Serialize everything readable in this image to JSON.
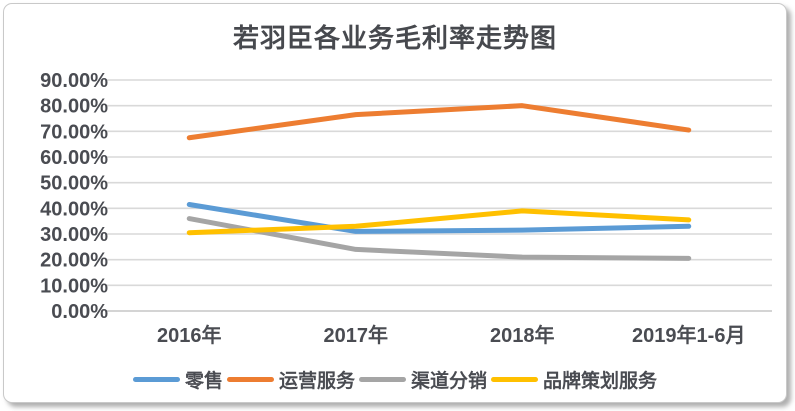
{
  "chart_data": {
    "type": "line",
    "title": "若羽臣各业务毛利率走势图",
    "categories": [
      "2016年",
      "2017年",
      "2018年",
      "2019年1-6月"
    ],
    "series": [
      {
        "name": "零售",
        "color": "#5B9BD5",
        "values": [
          41.5,
          31.0,
          31.5,
          33.0
        ]
      },
      {
        "name": "运营服务",
        "color": "#ED7D31",
        "values": [
          67.5,
          76.5,
          80.0,
          70.5
        ]
      },
      {
        "name": "渠道分销",
        "color": "#A5A5A5",
        "values": [
          36.0,
          24.0,
          21.0,
          20.5
        ]
      },
      {
        "name": "品牌策划服务",
        "color": "#FFC000",
        "values": [
          30.5,
          33.0,
          39.0,
          35.5
        ]
      }
    ],
    "ylim": [
      0,
      90
    ],
    "y_step": 10,
    "y_tick_labels": [
      "0.00%",
      "10.00%",
      "20.00%",
      "30.00%",
      "40.00%",
      "50.00%",
      "60.00%",
      "70.00%",
      "80.00%",
      "90.00%"
    ],
    "xlabel": "",
    "ylabel": "",
    "grid": true,
    "legend_position": "bottom"
  },
  "style": {
    "gridline_color": "#d9d9d9",
    "axis_line_color": "#c6c6c6",
    "tick_label_color": "#4a4c52",
    "title_color": "#47494e",
    "line_width": 5
  }
}
